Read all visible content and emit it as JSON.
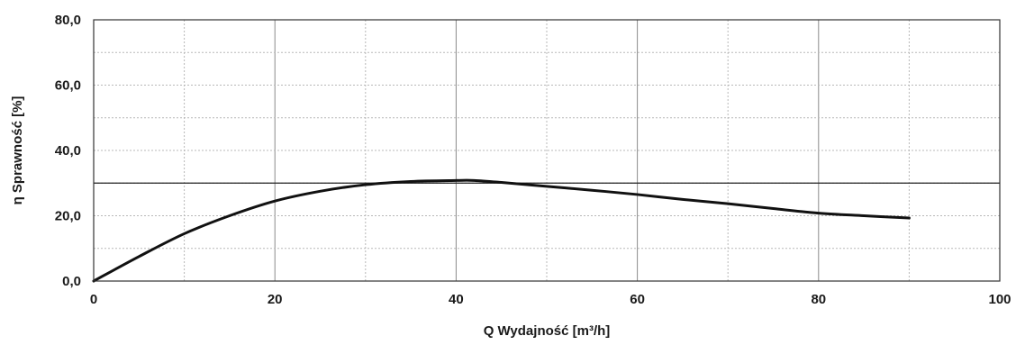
{
  "chart_data": {
    "type": "line",
    "xlabel": "Q Wydajność [m³/h]",
    "ylabel": "η Sprawność [%]",
    "xlim": [
      0,
      100
    ],
    "ylim": [
      0,
      80
    ],
    "x_ticks": [
      0,
      20,
      40,
      60,
      80,
      100
    ],
    "x_tick_labels": [
      "0",
      "20",
      "40",
      "60",
      "80",
      "100"
    ],
    "y_ticks": [
      0,
      20,
      40,
      60,
      80
    ],
    "y_tick_labels": [
      "0,0",
      "20,0",
      "40,0",
      "60,0",
      "80,0"
    ],
    "grid": true,
    "reference_line_y": 30,
    "series": [
      {
        "x": [
          0,
          5,
          10,
          15,
          20,
          25,
          30,
          35,
          40,
          42,
          45,
          50,
          55,
          60,
          65,
          70,
          75,
          80,
          85,
          90
        ],
        "y": [
          0,
          7.5,
          14.5,
          20.0,
          24.5,
          27.5,
          29.5,
          30.5,
          30.8,
          30.8,
          30.2,
          29.0,
          27.8,
          26.5,
          25.0,
          23.7,
          22.2,
          20.8,
          20.0,
          19.3
        ]
      }
    ]
  }
}
